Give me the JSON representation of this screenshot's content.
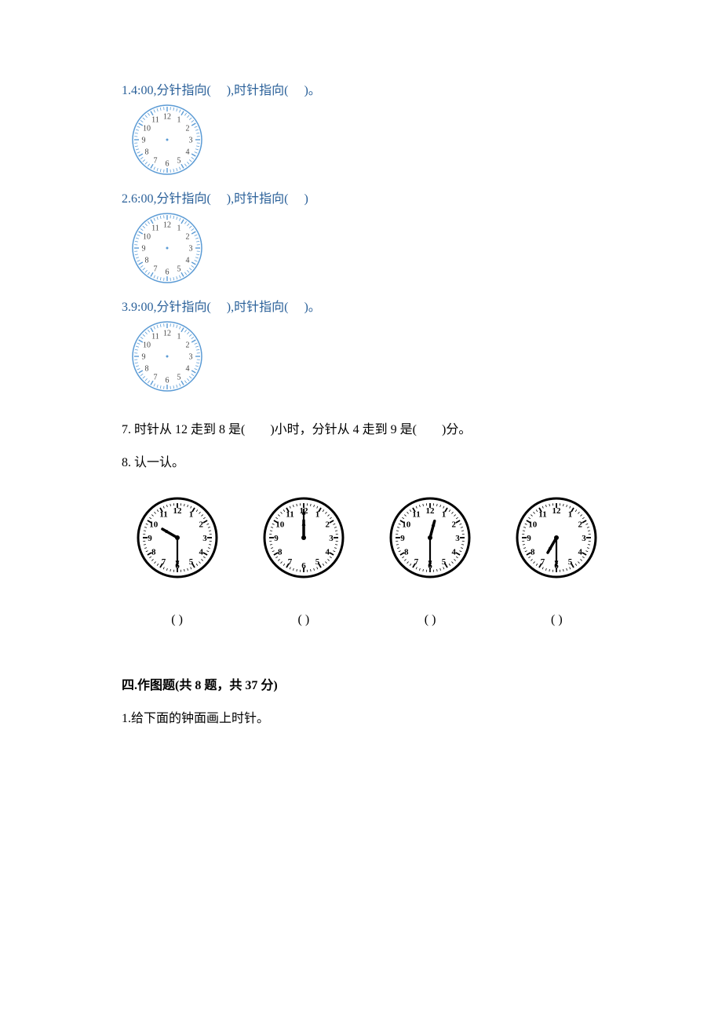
{
  "colors": {
    "blue": "#2a6099",
    "black": "#000000",
    "clockBlueStroke": "#5b9bd5",
    "clockNumBlue": "#444444",
    "bwClockStroke": "#000000"
  },
  "q1": {
    "num": "1.",
    "tA": "4:00,分针指向(",
    "blank1": "     ",
    "tB": "),时针指向(",
    "blank2": "     ",
    "tC": ")。"
  },
  "q2": {
    "num": "2.",
    "tA": "6:00,分针指向(",
    "blank1": "     ",
    "tB": "),时针指向(",
    "blank2": "     ",
    "tC": ")"
  },
  "q3": {
    "num": "3.",
    "tA": "9:00,分针指向(",
    "blank1": "     ",
    "tB": "),时针指向(",
    "blank2": "     ",
    "tC": ")。"
  },
  "q7": {
    "prefix": "7.",
    "tA": "时针从 12 走到 8 是(",
    "blank1": "      ",
    "tB": ")小时，分针从 4 走到 9 是(",
    "blank2": "      ",
    "tC": ")分。"
  },
  "q8": {
    "prefix": "8.",
    "text": "认一认。"
  },
  "bwClocks": [
    {
      "hour": 9.5,
      "minute": 30,
      "answer": "(       )"
    },
    {
      "hour": 12,
      "minute": 0,
      "answer": "(       )"
    },
    {
      "hour": 12,
      "minute": 30,
      "answer": "(       )"
    },
    {
      "hour": 6.5,
      "minute": 30,
      "answer": "(       )"
    }
  ],
  "section4": {
    "head": "四.作图题(共 8 题，共 37 分)",
    "sub": "1.给下面的钟面画上时针。"
  },
  "blueClock": {
    "numbers": [
      "12",
      "1",
      "2",
      "3",
      "4",
      "5",
      "6",
      "7",
      "8",
      "9",
      "10",
      "11"
    ],
    "radius": 44,
    "numRadius": 30,
    "tickOuter": 42,
    "tickInner": 38,
    "fontsize": 10
  },
  "bwClock": {
    "numbers": [
      "12",
      "1",
      "2",
      "3",
      "4",
      "5",
      "6",
      "7",
      "8",
      "9",
      "10",
      "11"
    ],
    "outerR": 50,
    "innerR": 44,
    "numRadius": 35,
    "fontsize": 11,
    "hourLen": 22,
    "minuteLen": 36
  }
}
